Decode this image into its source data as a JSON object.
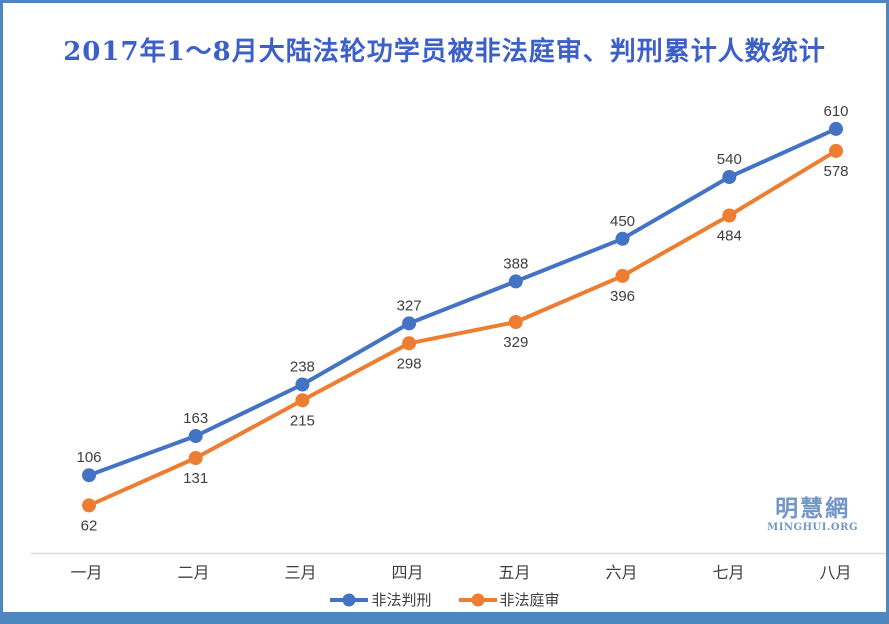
{
  "chart_data": {
    "type": "line",
    "title": "2017年1～8月大陆法轮功学员被非法庭审、判刑累计人数统计",
    "categories": [
      "一月",
      "二月",
      "三月",
      "四月",
      "五月",
      "六月",
      "七月",
      "八月"
    ],
    "series": [
      {
        "name": "非法判刑",
        "color": "#4472C4",
        "values": [
          106,
          163,
          238,
          327,
          388,
          450,
          540,
          610
        ],
        "label_position": "above"
      },
      {
        "name": "非法庭审",
        "color": "#ED7D31",
        "values": [
          62,
          131,
          215,
          298,
          329,
          396,
          484,
          578
        ],
        "label_position": "below"
      }
    ],
    "ylim": [
      0,
      650
    ],
    "grid": false,
    "y_axis_visible": false,
    "data_labels": true,
    "legend_position": "bottom"
  },
  "watermark": {
    "line1": "明慧網",
    "line2": "MINGHUI.ORG"
  },
  "colors": {
    "frame": "#4E86C0",
    "title_text": "#3C5FC8",
    "axis_line": "#D9D9D9",
    "label_text": "#3f3f3f",
    "watermark": "#7396C8"
  }
}
